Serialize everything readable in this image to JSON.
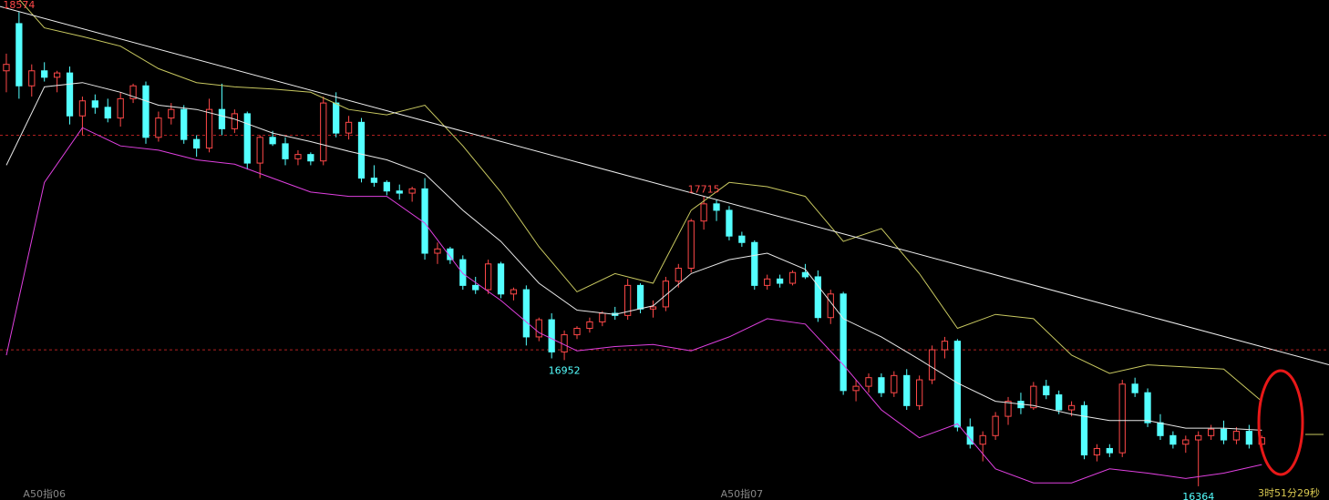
{
  "chart_data": {
    "type": "candlestick",
    "status_text": "3时51分29秒",
    "categories": [
      null,
      null,
      null,
      "A50指06",
      null,
      null,
      null,
      null,
      null,
      null,
      null,
      null,
      null,
      null,
      null,
      null,
      null,
      null,
      null,
      null,
      null,
      null,
      null,
      null,
      null,
      null,
      null,
      null,
      null,
      null,
      null,
      null,
      null,
      null,
      null,
      null,
      null,
      null,
      null,
      null,
      null,
      null,
      null,
      null,
      null,
      null,
      null,
      null,
      null,
      null,
      null,
      null,
      null,
      null,
      null,
      null,
      null,
      null,
      "A50指07",
      null,
      null,
      null,
      null,
      null,
      null,
      null,
      null,
      null,
      null,
      null,
      null,
      null,
      null,
      null,
      null,
      null,
      null,
      null,
      null,
      null,
      null,
      null,
      null,
      null,
      null,
      null,
      null,
      null,
      null,
      null,
      null,
      null,
      null,
      null,
      null,
      null,
      null,
      null,
      null,
      null
    ],
    "ohlc": [
      [
        18300,
        18380,
        18200,
        18330
      ],
      [
        18520,
        18574,
        18170,
        18230
      ],
      [
        18230,
        18330,
        18180,
        18300
      ],
      [
        18300,
        18340,
        18250,
        18270
      ],
      [
        18270,
        18300,
        18200,
        18290
      ],
      [
        18290,
        18320,
        18050,
        18090
      ],
      [
        18090,
        18180,
        18000,
        18160
      ],
      [
        18160,
        18190,
        18100,
        18130
      ],
      [
        18130,
        18170,
        18060,
        18080
      ],
      [
        18080,
        18200,
        18040,
        18170
      ],
      [
        18170,
        18240,
        18150,
        18230
      ],
      [
        18230,
        18250,
        17960,
        17990
      ],
      [
        17990,
        18110,
        17970,
        18080
      ],
      [
        18080,
        18150,
        18050,
        18120
      ],
      [
        18120,
        18140,
        17960,
        17980
      ],
      [
        17980,
        18000,
        17900,
        17940
      ],
      [
        17940,
        18170,
        17920,
        18120
      ],
      [
        18120,
        18240,
        18000,
        18030
      ],
      [
        18030,
        18120,
        18010,
        18100
      ],
      [
        18100,
        18110,
        17840,
        17870
      ],
      [
        17870,
        18000,
        17800,
        17990
      ],
      [
        17990,
        18020,
        17950,
        17960
      ],
      [
        17960,
        17990,
        17860,
        17890
      ],
      [
        17890,
        17930,
        17860,
        17910
      ],
      [
        17910,
        17920,
        17860,
        17880
      ],
      [
        17880,
        18180,
        17860,
        18150
      ],
      [
        18150,
        18200,
        17990,
        18010
      ],
      [
        18010,
        18090,
        17980,
        18060
      ],
      [
        18060,
        18080,
        17780,
        17800
      ],
      [
        17800,
        17860,
        17760,
        17780
      ],
      [
        17780,
        17790,
        17720,
        17740
      ],
      [
        17740,
        17770,
        17700,
        17730
      ],
      [
        17730,
        17760,
        17690,
        17750
      ],
      [
        17750,
        17800,
        17420,
        17450
      ],
      [
        17450,
        17500,
        17400,
        17470
      ],
      [
        17470,
        17480,
        17400,
        17420
      ],
      [
        17420,
        17440,
        17280,
        17300
      ],
      [
        17300,
        17340,
        17260,
        17280
      ],
      [
        17280,
        17420,
        17260,
        17400
      ],
      [
        17400,
        17410,
        17240,
        17260
      ],
      [
        17260,
        17290,
        17230,
        17280
      ],
      [
        17280,
        17300,
        17020,
        17060
      ],
      [
        17060,
        17150,
        17040,
        17140
      ],
      [
        17140,
        17170,
        16960,
        16990
      ],
      [
        16990,
        17090,
        16952,
        17070
      ],
      [
        17070,
        17110,
        17050,
        17100
      ],
      [
        17100,
        17150,
        17080,
        17130
      ],
      [
        17130,
        17180,
        17110,
        17170
      ],
      [
        17170,
        17200,
        17140,
        17160
      ],
      [
        17160,
        17330,
        17140,
        17300
      ],
      [
        17300,
        17310,
        17170,
        17190
      ],
      [
        17190,
        17230,
        17150,
        17200
      ],
      [
        17200,
        17340,
        17180,
        17320
      ],
      [
        17320,
        17400,
        17290,
        17380
      ],
      [
        17380,
        17610,
        17360,
        17600
      ],
      [
        17600,
        17715,
        17560,
        17680
      ],
      [
        17680,
        17700,
        17600,
        17650
      ],
      [
        17650,
        17670,
        17510,
        17530
      ],
      [
        17530,
        17550,
        17480,
        17500
      ],
      [
        17500,
        17510,
        17280,
        17300
      ],
      [
        17300,
        17350,
        17280,
        17330
      ],
      [
        17330,
        17350,
        17290,
        17310
      ],
      [
        17310,
        17370,
        17300,
        17360
      ],
      [
        17360,
        17400,
        17330,
        17340
      ],
      [
        17340,
        17370,
        17130,
        17150
      ],
      [
        17150,
        17280,
        17120,
        17260
      ],
      [
        17260,
        17270,
        16790,
        16810
      ],
      [
        16810,
        16860,
        16760,
        16830
      ],
      [
        16830,
        16890,
        16800,
        16870
      ],
      [
        16870,
        16890,
        16780,
        16800
      ],
      [
        16800,
        16900,
        16780,
        16880
      ],
      [
        16880,
        16910,
        16720,
        16740
      ],
      [
        16740,
        16880,
        16720,
        16860
      ],
      [
        16860,
        17020,
        16840,
        17000
      ],
      [
        17000,
        17060,
        16960,
        17040
      ],
      [
        17040,
        17050,
        16620,
        16640
      ],
      [
        16640,
        16680,
        16540,
        16560
      ],
      [
        16560,
        16620,
        16480,
        16600
      ],
      [
        16600,
        16710,
        16580,
        16690
      ],
      [
        16690,
        16780,
        16650,
        16760
      ],
      [
        16760,
        16800,
        16700,
        16730
      ],
      [
        16730,
        16850,
        16720,
        16830
      ],
      [
        16830,
        16860,
        16770,
        16790
      ],
      [
        16790,
        16810,
        16700,
        16720
      ],
      [
        16720,
        16760,
        16690,
        16740
      ],
      [
        16740,
        16760,
        16490,
        16510
      ],
      [
        16510,
        16560,
        16480,
        16540
      ],
      [
        16540,
        16560,
        16500,
        16520
      ],
      [
        16520,
        16860,
        16500,
        16840
      ],
      [
        16840,
        16870,
        16780,
        16800
      ],
      [
        16800,
        16820,
        16640,
        16660
      ],
      [
        16660,
        16700,
        16580,
        16600
      ],
      [
        16600,
        16620,
        16540,
        16560
      ],
      [
        16560,
        16600,
        16520,
        16580
      ],
      [
        16580,
        16620,
        16364,
        16600
      ],
      [
        16600,
        16650,
        16580,
        16630
      ],
      [
        16630,
        16670,
        16560,
        16580
      ],
      [
        16580,
        16640,
        16560,
        16620
      ],
      [
        16620,
        16650,
        16540,
        16560
      ],
      [
        16560,
        16600,
        16550,
        16590
      ]
    ],
    "up_color": "#ff4848",
    "down_color": "#54ffff",
    "bands": {
      "x": [
        0,
        3,
        6,
        9,
        12,
        15,
        18,
        21,
        24,
        27,
        30,
        33,
        36,
        39,
        42,
        45,
        48,
        51,
        54,
        57,
        60,
        63,
        66,
        69,
        72,
        75,
        78,
        81,
        84,
        87,
        90,
        93,
        96,
        99
      ],
      "series": [
        {
          "name": "upper",
          "color": "#c8c860",
          "values": [
            18700,
            18500,
            18460,
            18415,
            18310,
            18245,
            18225,
            18215,
            18200,
            18120,
            18095,
            18140,
            17950,
            17735,
            17480,
            17270,
            17355,
            17310,
            17650,
            17780,
            17760,
            17715,
            17505,
            17565,
            17355,
            17100,
            17165,
            17145,
            16975,
            16890,
            16930,
            16920,
            16910,
            16760
          ]
        },
        {
          "name": "middle",
          "color": "#e8e8e8",
          "values": [
            17860,
            18225,
            18245,
            18200,
            18140,
            18120,
            18075,
            18010,
            17970,
            17925,
            17885,
            17820,
            17650,
            17505,
            17310,
            17185,
            17165,
            17205,
            17355,
            17420,
            17450,
            17375,
            17145,
            17060,
            16955,
            16845,
            16760,
            16740,
            16700,
            16670,
            16670,
            16635,
            16635,
            16625
          ]
        },
        {
          "name": "lower",
          "color": "#e040e0",
          "values": [
            16975,
            17780,
            18035,
            17950,
            17930,
            17885,
            17865,
            17800,
            17735,
            17715,
            17715,
            17590,
            17355,
            17230,
            17080,
            16995,
            17015,
            17025,
            16995,
            17060,
            17145,
            17120,
            16930,
            16720,
            16590,
            16655,
            16445,
            16380,
            16380,
            16445,
            16425,
            16400,
            16425,
            16465
          ]
        }
      ]
    },
    "trendline": {
      "x": [
        -0.5,
        104.3
      ],
      "y": [
        18600,
        16930
      ],
      "color": "#f0f0f0"
    },
    "reference_lines": [
      18000,
      17000
    ],
    "extremes": [
      {
        "index": 1,
        "at": "high",
        "value": 18574
      },
      {
        "index": 55,
        "at": "high",
        "value": 17715
      },
      {
        "index": 44,
        "at": "low",
        "value": 16952
      },
      {
        "index": 94,
        "at": "low",
        "value": 16364
      }
    ],
    "xlim": [
      -0.5,
      104.3
    ],
    "ylim": [
      16300,
      18630
    ]
  }
}
